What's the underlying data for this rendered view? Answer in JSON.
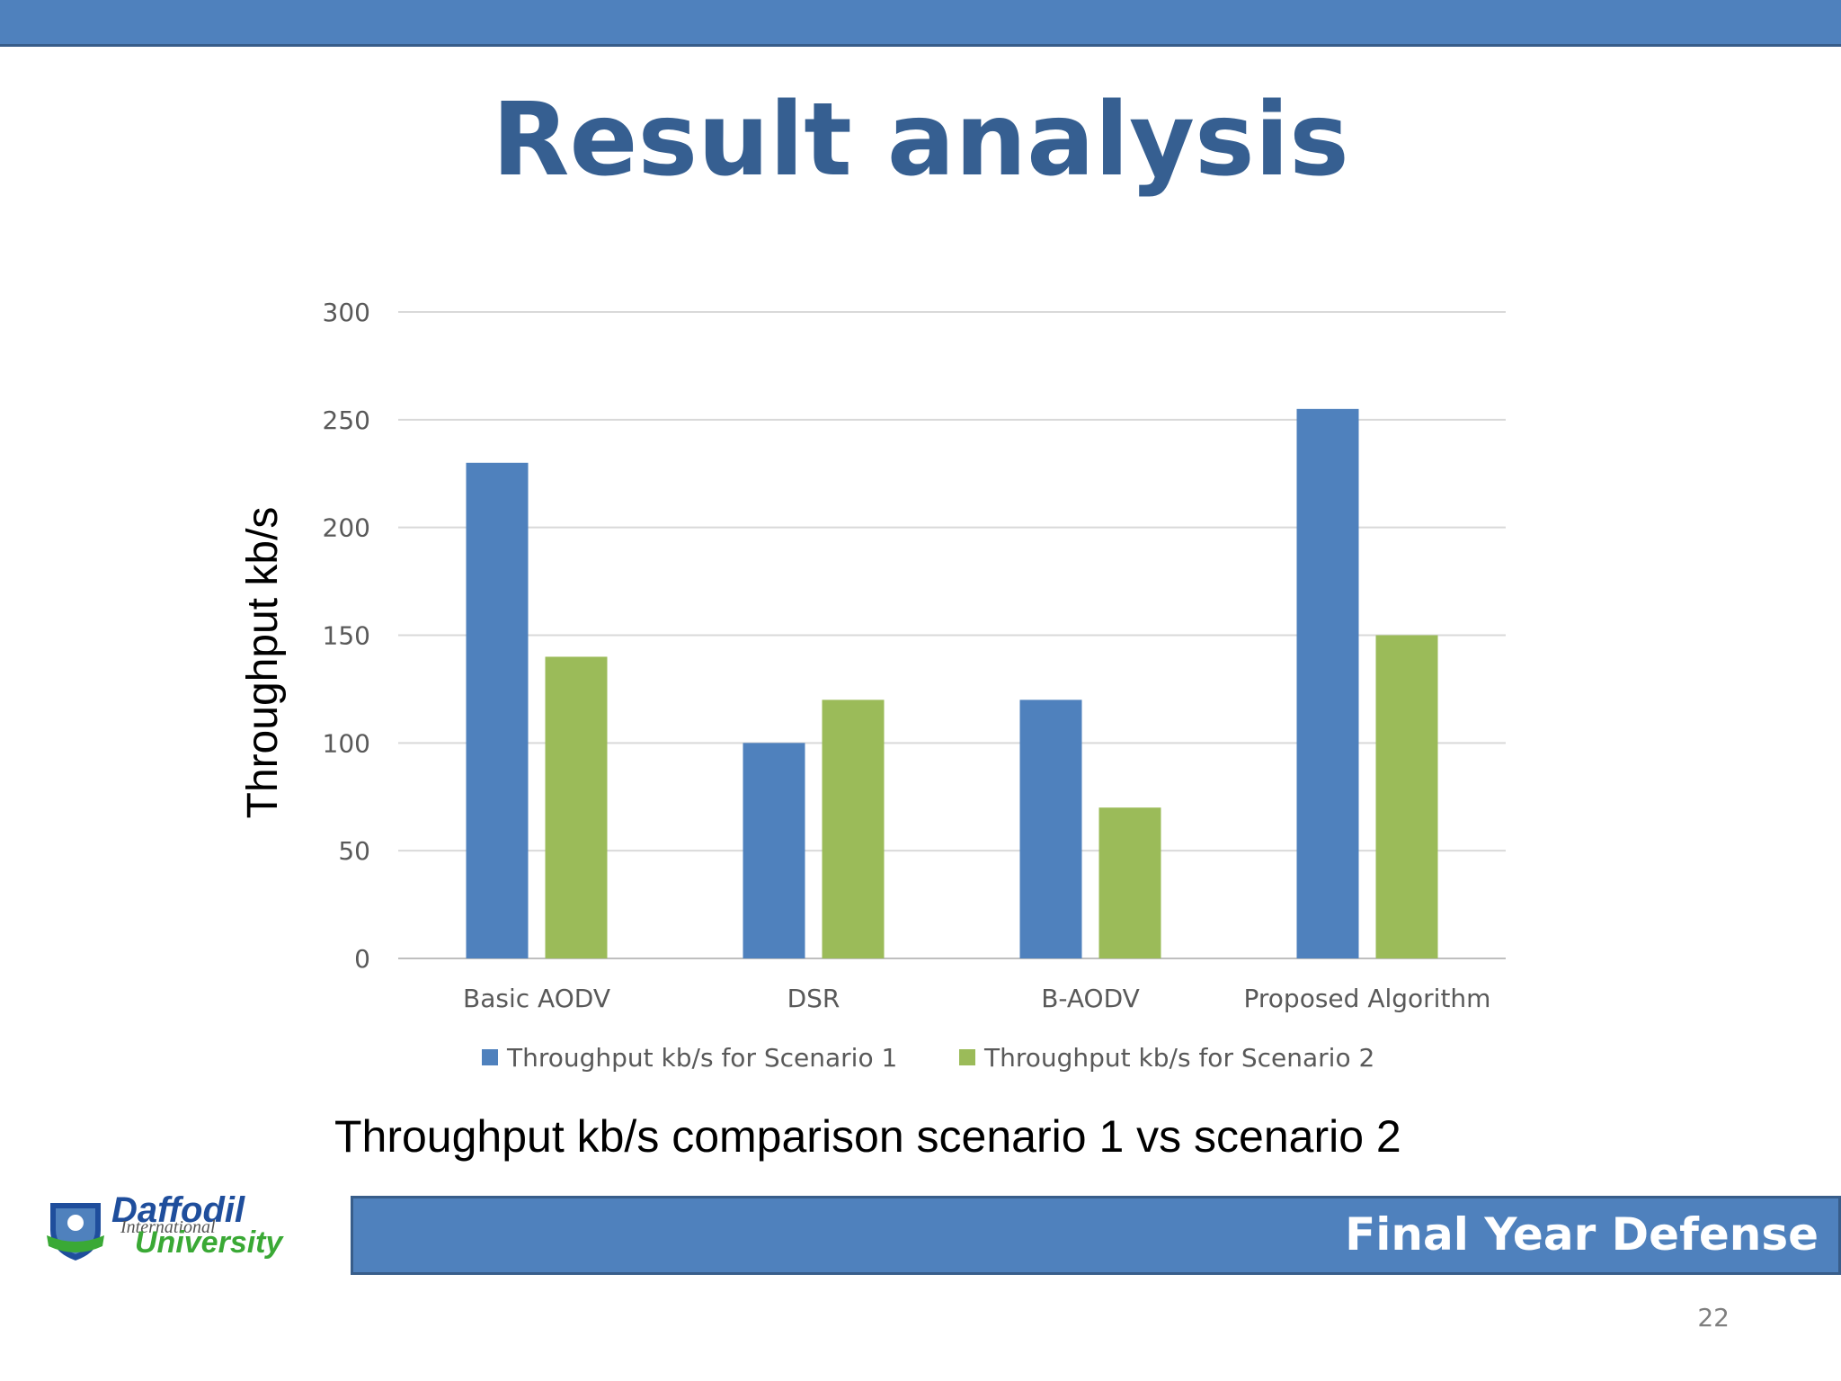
{
  "slide": {
    "title": "Result analysis",
    "caption": "Throughput kb/s comparison scenario 1 vs scenario 2",
    "footer": "Final Year Defense",
    "page_number": "22"
  },
  "logo": {
    "line1": "Daffodil",
    "line2": "International",
    "line3": "University"
  },
  "colors": {
    "accent": "#4f81bd",
    "title": "#365f91",
    "series1": "#4f81bd",
    "series2": "#9bbb59"
  },
  "chart_data": {
    "type": "bar",
    "title": "",
    "xlabel": "",
    "ylabel": "Throughput kb/s",
    "categories": [
      "Basic AODV",
      "DSR",
      "B-AODV",
      "Proposed Algorithm"
    ],
    "series": [
      {
        "name": "Throughput kb/s for Scenario 1",
        "values": [
          230,
          100,
          120,
          255
        ]
      },
      {
        "name": "Throughput kb/s for Scenario 2",
        "values": [
          140,
          120,
          70,
          150
        ]
      }
    ],
    "yticks": [
      "0",
      "50",
      "100",
      "150",
      "200",
      "250",
      "300"
    ],
    "ylim": [
      0,
      300
    ],
    "grid": true,
    "legend": "bottom"
  }
}
